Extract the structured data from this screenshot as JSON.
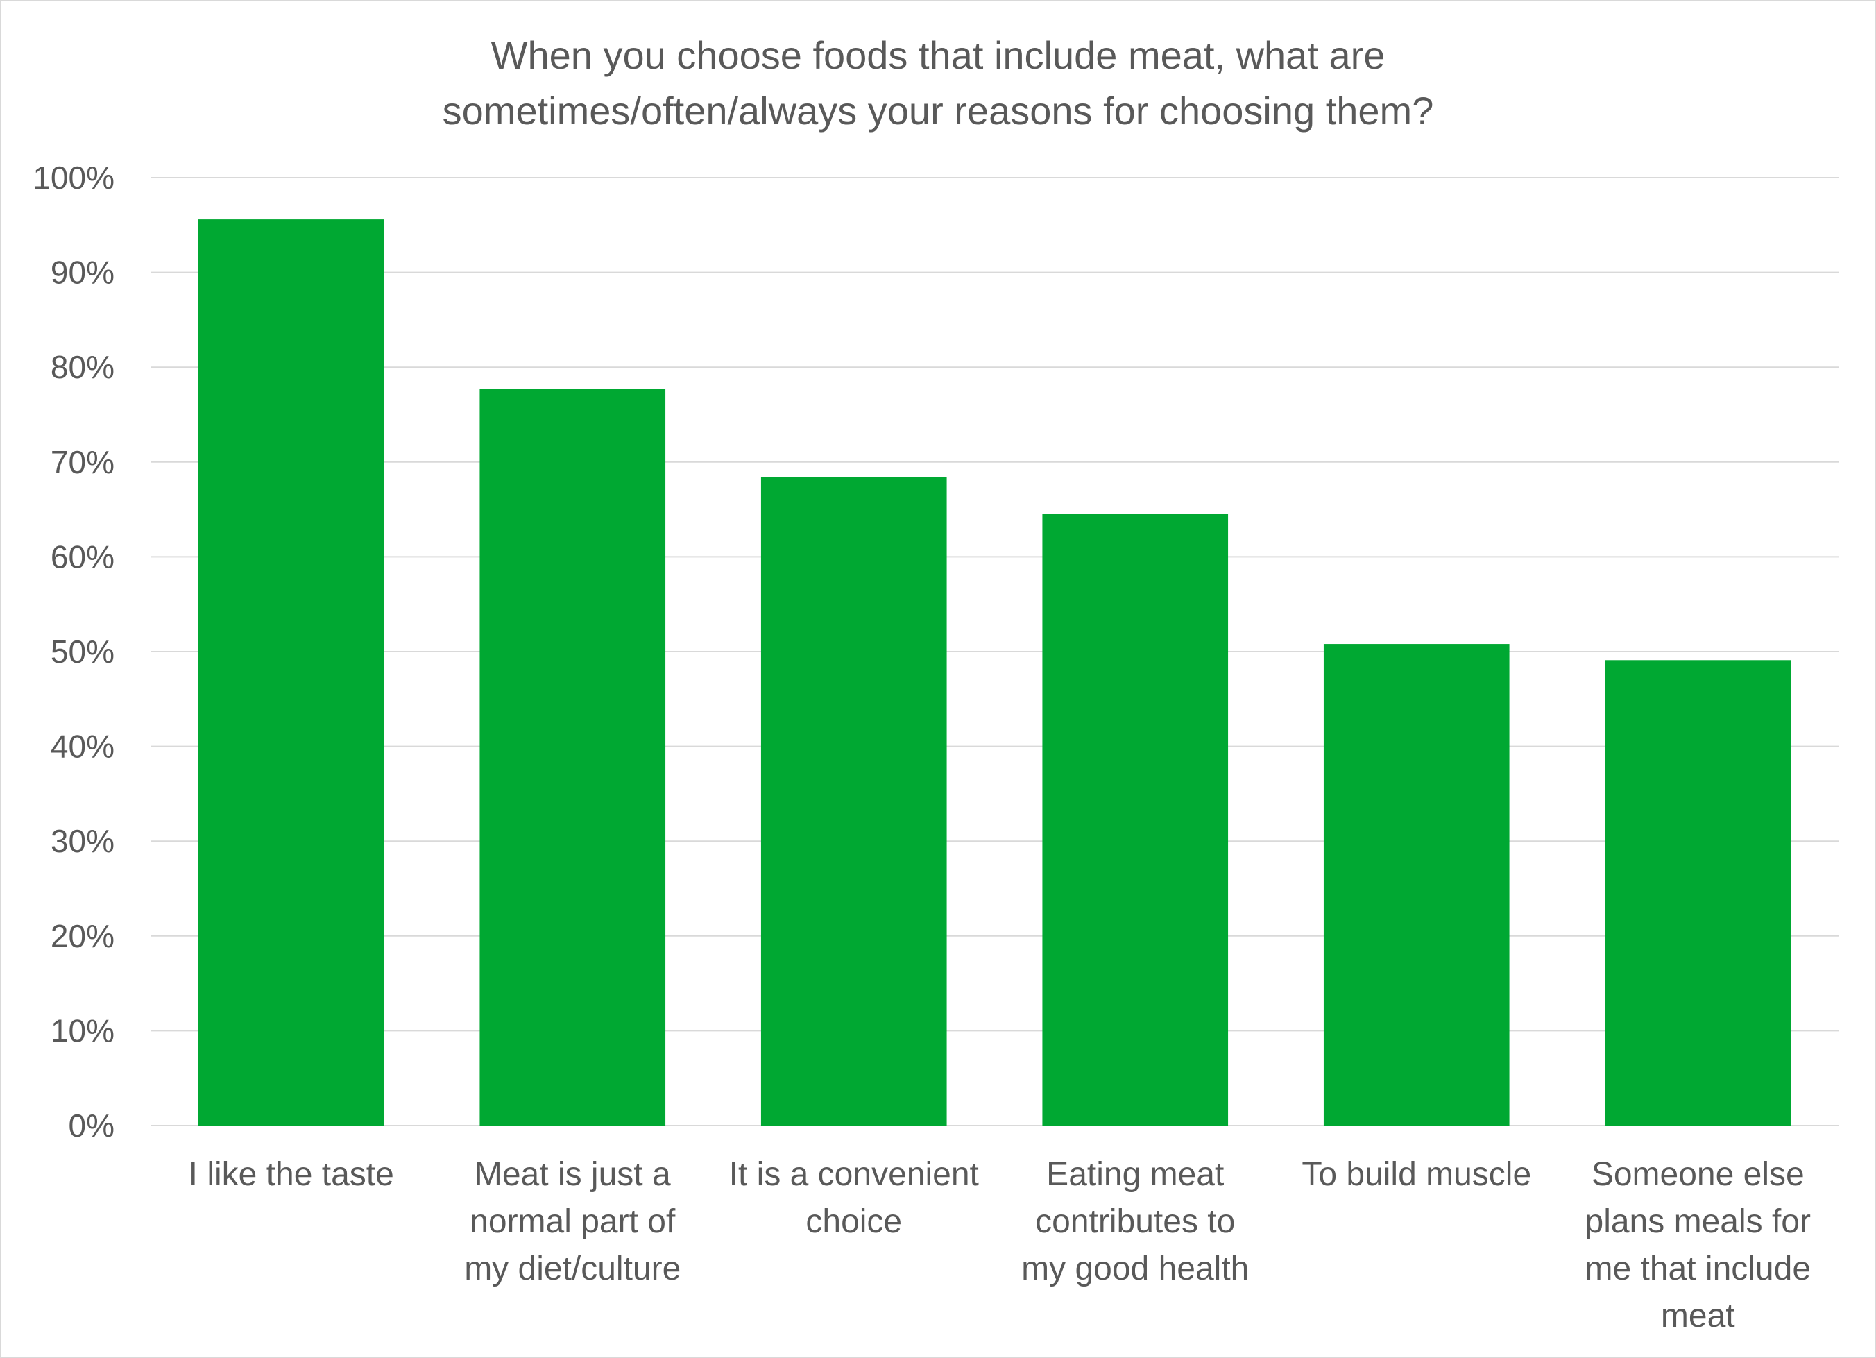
{
  "chart_data": {
    "type": "bar",
    "title": "When you choose foods that include meat, what are sometimes/often/always your reasons for choosing them?",
    "title_lines": [
      "When you choose foods that include meat, what are",
      "sometimes/often/always your reasons for choosing them?"
    ],
    "categories": [
      "I like the taste",
      "Meat is just a normal part of my diet/culture",
      "It is a convenient choice",
      "Eating meat contributes to my good health",
      "To build muscle",
      "Someone else plans meals for me that include meat"
    ],
    "category_lines": [
      [
        "I like the taste"
      ],
      [
        "Meat is just a",
        "normal part of",
        "my diet/culture"
      ],
      [
        "It is a convenient",
        "choice"
      ],
      [
        "Eating meat",
        "contributes to",
        "my good health"
      ],
      [
        "To build muscle"
      ],
      [
        "Someone else",
        "plans meals for",
        "me that include",
        "meat"
      ]
    ],
    "values": [
      95.6,
      77.7,
      68.4,
      64.5,
      50.8,
      49.1
    ],
    "unit": "%",
    "ylim": [
      0,
      100
    ],
    "yticks": [
      "0%",
      "10%",
      "20%",
      "30%",
      "40%",
      "50%",
      "60%",
      "70%",
      "80%",
      "90%",
      "100%"
    ],
    "xlabel": "",
    "ylabel": "",
    "grid": true,
    "legend": "none",
    "bar_color": "#00a832",
    "grid_color": "#d9d9d9",
    "text_color": "#595959"
  }
}
